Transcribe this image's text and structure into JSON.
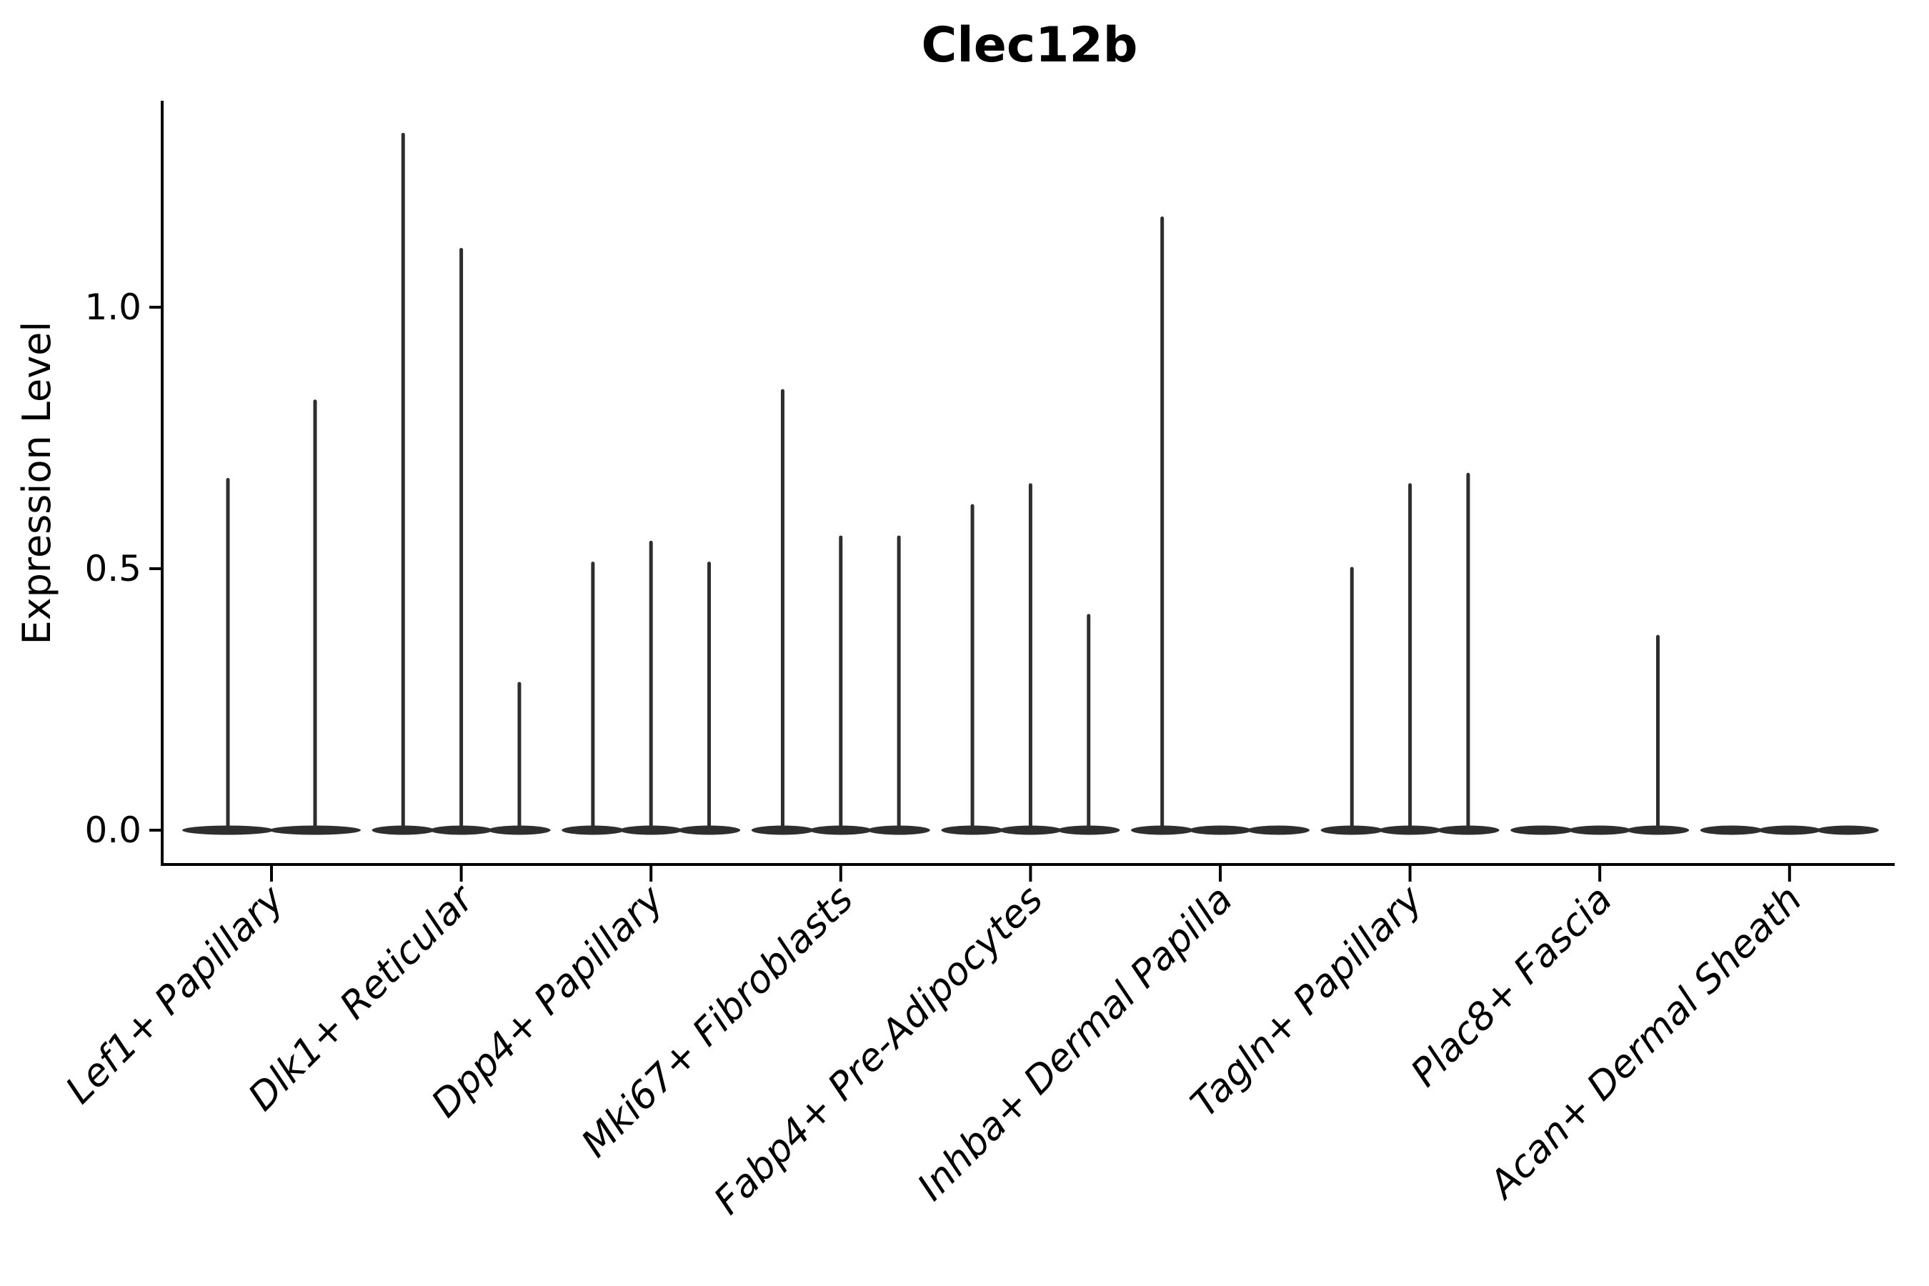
{
  "title": "Clec12b",
  "chart_data": {
    "type": "violin",
    "title": "Clec12b",
    "xlabel": "",
    "ylabel": "Expression Level",
    "yticks": [
      0.0,
      0.5,
      1.0
    ],
    "ytick_labels": [
      "0.0",
      "0.5",
      "1.0"
    ],
    "ylim": [
      -0.066,
      1.395
    ],
    "grid": false,
    "legend": "none",
    "x_label_rotation_deg": 45,
    "categories": [
      "Lef1+ Papillary",
      "Dlk1+ Reticular",
      "Dpp4+ Papillary",
      "Mki67+ Fibroblasts",
      "Fabp4+ Pre-Adipocytes",
      "Inhba+ Dermal Papilla",
      "Tagln+ Papillary",
      "Plac8+ Fascia",
      "Acan+ Dermal Sheath"
    ],
    "groups": [
      {
        "category": "Lef1+ Papillary",
        "violin_maxima": [
          0.67,
          0.82
        ]
      },
      {
        "category": "Dlk1+ Reticular",
        "violin_maxima": [
          1.33,
          1.11,
          0.28
        ]
      },
      {
        "category": "Dpp4+ Papillary",
        "violin_maxima": [
          0.51,
          0.55,
          0.51
        ]
      },
      {
        "category": "Mki67+ Fibroblasts",
        "violin_maxima": [
          0.84,
          0.56,
          0.56
        ]
      },
      {
        "category": "Fabp4+ Pre-Adipocytes",
        "violin_maxima": [
          0.62,
          0.66,
          0.41
        ]
      },
      {
        "category": "Inhba+ Dermal Papilla",
        "violin_maxima": [
          1.17,
          0,
          0
        ]
      },
      {
        "category": "Tagln+ Papillary",
        "violin_maxima": [
          0.5,
          0.66,
          0.68
        ]
      },
      {
        "category": "Plac8+ Fascia",
        "violin_maxima": [
          0,
          0,
          0.37
        ]
      },
      {
        "category": "Acan+ Dermal Sheath",
        "violin_maxima": [
          0,
          0,
          0
        ]
      }
    ],
    "description": "All violins are concentrated at 0 expression (flat lens at baseline) with thin density spikes rising to each sub-violin maximum.",
    "colors": {
      "violin": "#2e2e2e",
      "axis": "#000000",
      "text": "#000000",
      "background": "#ffffff"
    }
  }
}
